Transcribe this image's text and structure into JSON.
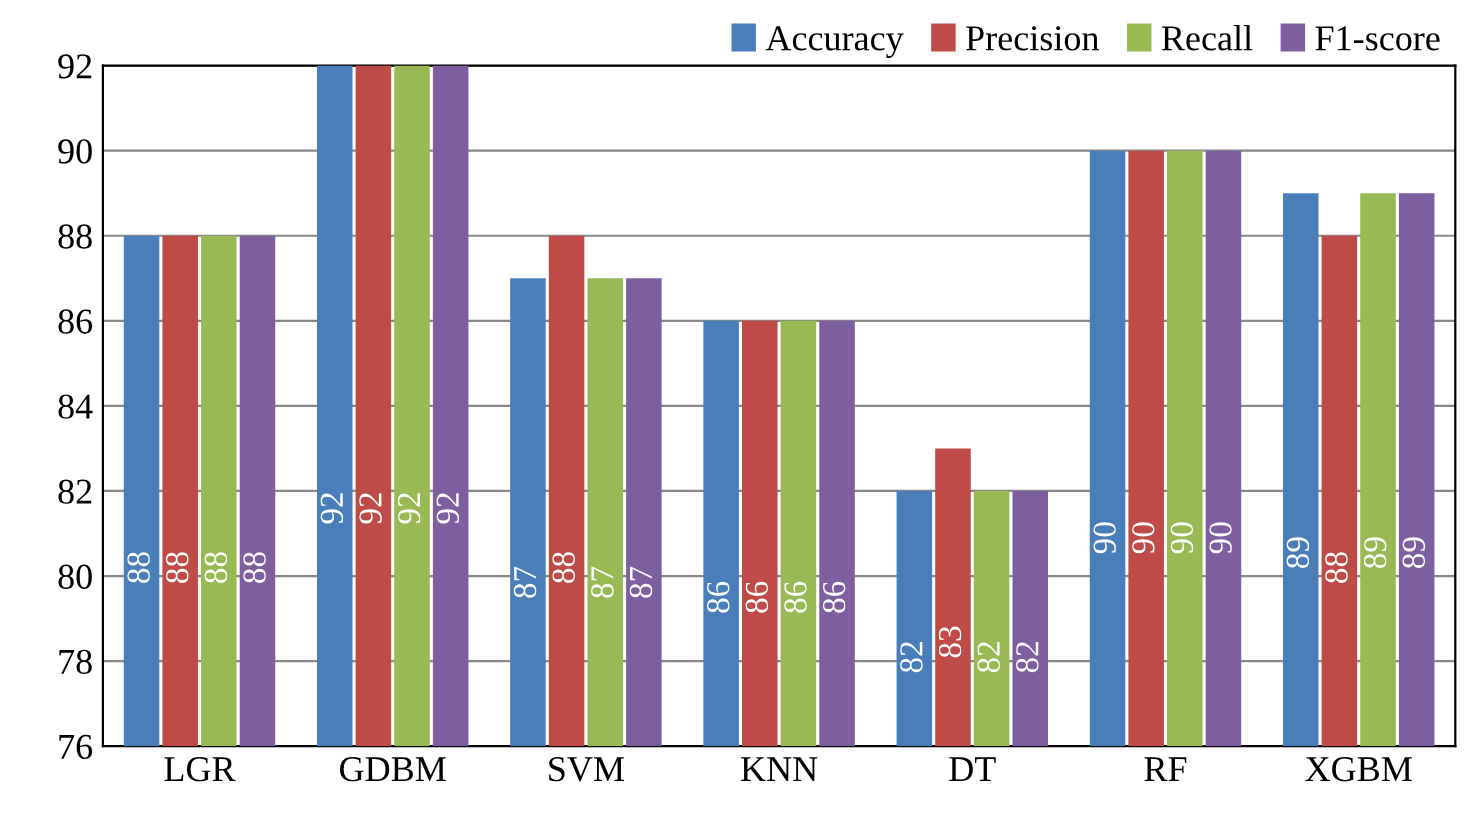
{
  "chart_data": {
    "type": "bar",
    "categories": [
      "LGR",
      "GDBM",
      "SVM",
      "KNN",
      "DT",
      "RF",
      "XGBM"
    ],
    "series": [
      {
        "name": "Accuracy",
        "color": "#4a7ebb",
        "values": [
          88,
          92,
          87,
          86,
          82,
          90,
          89
        ]
      },
      {
        "name": "Precision",
        "color": "#be4b48",
        "values": [
          88,
          92,
          88,
          86,
          83,
          90,
          88
        ]
      },
      {
        "name": "Recall",
        "color": "#98b954",
        "values": [
          88,
          92,
          87,
          86,
          82,
          90,
          89
        ]
      },
      {
        "name": "F1-score",
        "color": "#7d5fa0",
        "values": [
          88,
          92,
          87,
          86,
          82,
          90,
          89
        ]
      }
    ],
    "ylim": [
      76,
      92
    ],
    "yticks": [
      76,
      78,
      80,
      82,
      84,
      86,
      88,
      90,
      92
    ],
    "grid": "y",
    "legend": "top right",
    "data_labels": true
  }
}
